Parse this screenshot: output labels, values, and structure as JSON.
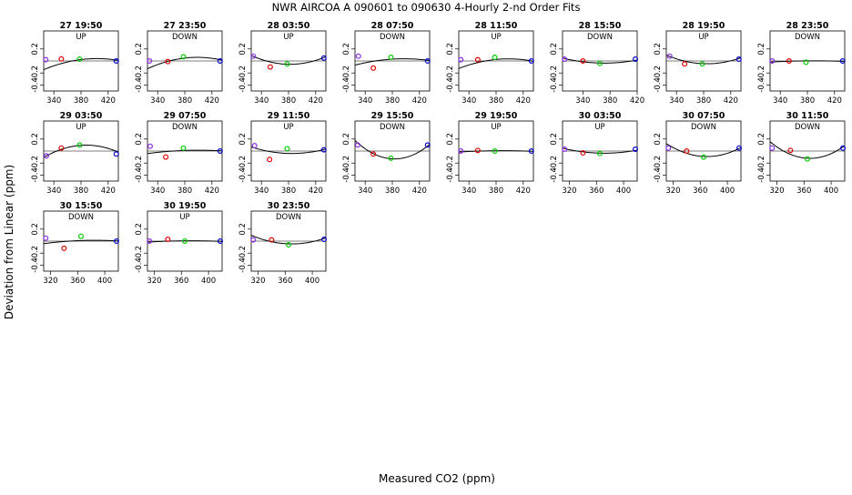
{
  "title": "NWR   AIRCOA A   090601 to 090630   4-Hourly 2-nd Order Fits",
  "xlabel": "Measured CO2 (ppm)",
  "ylabel": "Deviation from Linear (ppm)",
  "colors": {
    "marker1": "#8a2be2",
    "marker2": "#e00000",
    "marker3": "#00cc00",
    "marker4": "#0000cc",
    "curve": "#000000"
  },
  "chart_data": {
    "type": "scatter",
    "panels": [
      {
        "title": "27 19:50",
        "dir": "UP",
        "xlim": [
          325,
          435
        ],
        "xticks": [
          340,
          380,
          420
        ],
        "ylim": [
          -0.5,
          0.5
        ],
        "yticks": [
          0.2,
          -0.2,
          -0.4
        ],
        "points": [
          [
            328,
            0.02
          ],
          [
            351,
            0.035
          ],
          [
            378,
            0.03
          ],
          [
            432,
            0.0
          ]
        ],
        "curve": [
          0.023,
          0.0014,
          -3e-05
        ]
      },
      {
        "title": "27 23:50",
        "dir": "DOWN",
        "xlim": [
          325,
          435
        ],
        "xticks": [
          340,
          380,
          420
        ],
        "ylim": [
          -0.5,
          0.5
        ],
        "yticks": [
          0.2,
          -0.2,
          -0.4
        ],
        "points": [
          [
            328,
            0.0
          ],
          [
            355,
            -0.01
          ],
          [
            378,
            0.07
          ],
          [
            432,
            0.0
          ]
        ],
        "curve": [
          0.048,
          0.0013,
          -3.5e-05
        ]
      },
      {
        "title": "28 03:50",
        "dir": "UP",
        "xlim": [
          325,
          435
        ],
        "xticks": [
          340,
          380,
          420
        ],
        "ylim": [
          -0.5,
          0.5
        ],
        "yticks": [
          0.2,
          -0.2,
          -0.4
        ],
        "points": [
          [
            328,
            0.08
          ],
          [
            353,
            -0.1
          ],
          [
            378,
            -0.05
          ],
          [
            432,
            0.05
          ]
        ],
        "curve": [
          -0.055,
          -0.0002,
          4.5e-05
        ]
      },
      {
        "title": "28 07:50",
        "dir": "DOWN",
        "xlim": [
          325,
          435
        ],
        "xticks": [
          340,
          380,
          420
        ],
        "ylim": [
          -0.5,
          0.5
        ],
        "yticks": [
          0.2,
          -0.2,
          -0.4
        ],
        "points": [
          [
            330,
            0.08
          ],
          [
            352,
            -0.12
          ],
          [
            378,
            0.06
          ],
          [
            432,
            0.0
          ]
        ],
        "curve": [
          0.03,
          0.0007,
          -2e-05
        ]
      },
      {
        "title": "28 11:50",
        "dir": "UP",
        "xlim": [
          325,
          435
        ],
        "xticks": [
          340,
          380,
          420
        ],
        "ylim": [
          -0.5,
          0.5
        ],
        "yticks": [
          0.2,
          -0.2,
          -0.4
        ],
        "points": [
          [
            328,
            0.02
          ],
          [
            353,
            0.02
          ],
          [
            378,
            0.06
          ],
          [
            432,
            0.0
          ]
        ],
        "curve": [
          0.025,
          0.0011,
          -3e-05
        ]
      },
      {
        "title": "28 15:50",
        "dir": "DOWN",
        "xlim": [
          310,
          420
        ],
        "xticks": [
          340,
          380,
          420
        ],
        "ylim": [
          -0.5,
          0.5
        ],
        "yticks": [
          0.2,
          -0.2,
          -0.4
        ],
        "points": [
          [
            313,
            0.03
          ],
          [
            340,
            0.0
          ],
          [
            365,
            -0.04
          ],
          [
            418,
            0.03
          ]
        ],
        "curve": [
          -0.035,
          -0.0003,
          2.2e-05
        ]
      },
      {
        "title": "28 19:50",
        "dir": "UP",
        "xlim": [
          325,
          435
        ],
        "xticks": [
          340,
          380,
          420
        ],
        "ylim": [
          -0.5,
          0.5
        ],
        "yticks": [
          0.2,
          -0.2,
          -0.4
        ],
        "points": [
          [
            330,
            0.08
          ],
          [
            352,
            -0.05
          ],
          [
            378,
            -0.05
          ],
          [
            432,
            0.03
          ]
        ],
        "curve": [
          -0.045,
          -0.0004,
          4e-05
        ]
      },
      {
        "title": "28 23:50",
        "dir": "DOWN",
        "xlim": [
          325,
          435
        ],
        "xticks": [
          340,
          380,
          420
        ],
        "ylim": [
          -0.5,
          0.5
        ],
        "yticks": [
          0.2,
          -0.2,
          -0.4
        ],
        "points": [
          [
            328,
            0.0
          ],
          [
            353,
            0.0
          ],
          [
            378,
            -0.02
          ],
          [
            432,
            0.0
          ]
        ],
        "curve": [
          0.002,
          0.0001,
          -5e-06
        ]
      },
      {
        "title": "29 03:50",
        "dir": "UP",
        "xlim": [
          325,
          435
        ],
        "xticks": [
          340,
          380,
          420
        ],
        "ylim": [
          -0.5,
          0.5
        ],
        "yticks": [
          0.2,
          -0.2,
          -0.4
        ],
        "points": [
          [
            329,
            -0.08
          ],
          [
            351,
            0.05
          ],
          [
            378,
            0.1
          ],
          [
            432,
            -0.05
          ]
        ],
        "curve": [
          0.095,
          0.0008,
          -5.2e-05
        ]
      },
      {
        "title": "29 07:50",
        "dir": "DOWN",
        "xlim": [
          325,
          435
        ],
        "xticks": [
          340,
          380,
          420
        ],
        "ylim": [
          -0.5,
          0.5
        ],
        "yticks": [
          0.2,
          -0.2,
          -0.4
        ],
        "points": [
          [
            329,
            0.08
          ],
          [
            352,
            -0.1
          ],
          [
            378,
            0.05
          ],
          [
            432,
            0.0
          ]
        ],
        "curve": [
          0.01,
          0.0004,
          -1e-05
        ]
      },
      {
        "title": "29 11:50",
        "dir": "UP",
        "xlim": [
          325,
          435
        ],
        "xticks": [
          340,
          380,
          420
        ],
        "ylim": [
          -0.5,
          0.5
        ],
        "yticks": [
          0.2,
          -0.2,
          -0.4
        ],
        "points": [
          [
            330,
            0.09
          ],
          [
            352,
            -0.14
          ],
          [
            378,
            0.04
          ],
          [
            432,
            0.02
          ]
        ],
        "curve": [
          -0.04,
          -0.0003,
          3e-05
        ]
      },
      {
        "title": "29 15:50",
        "dir": "DOWN",
        "xlim": [
          325,
          435
        ],
        "xticks": [
          340,
          380,
          420
        ],
        "ylim": [
          -0.5,
          0.5
        ],
        "yticks": [
          0.2,
          -0.2,
          -0.4
        ],
        "points": [
          [
            329,
            0.1
          ],
          [
            352,
            -0.05
          ],
          [
            378,
            -0.12
          ],
          [
            432,
            0.1
          ]
        ],
        "curve": [
          -0.13,
          -0.0006,
          9e-05
        ]
      },
      {
        "title": "29 19:50",
        "dir": "UP",
        "xlim": [
          325,
          435
        ],
        "xticks": [
          340,
          380,
          420
        ],
        "ylim": [
          -0.5,
          0.5
        ],
        "yticks": [
          0.2,
          -0.2,
          -0.4
        ],
        "points": [
          [
            328,
            0.0
          ],
          [
            353,
            0.01
          ],
          [
            378,
            0.0
          ],
          [
            432,
            0.0
          ]
        ],
        "curve": [
          0.005,
          0.0001,
          -5e-06
        ]
      },
      {
        "title": "30 03:50",
        "dir": "UP",
        "xlim": [
          310,
          420
        ],
        "xticks": [
          320,
          360,
          400
        ],
        "ylim": [
          -0.5,
          0.5
        ],
        "yticks": [
          0.2,
          -0.2,
          -0.4
        ],
        "points": [
          [
            313,
            0.03
          ],
          [
            340,
            -0.03
          ],
          [
            365,
            -0.04
          ],
          [
            418,
            0.03
          ]
        ],
        "curve": [
          -0.035,
          -0.0003,
          2.2e-05
        ]
      },
      {
        "title": "30 07:50",
        "dir": "DOWN",
        "xlim": [
          310,
          420
        ],
        "xticks": [
          320,
          360,
          400
        ],
        "ylim": [
          -0.5,
          0.5
        ],
        "yticks": [
          0.2,
          -0.2,
          -0.4
        ],
        "points": [
          [
            313,
            0.05
          ],
          [
            340,
            0.0
          ],
          [
            365,
            -0.1
          ],
          [
            418,
            0.05
          ]
        ],
        "curve": [
          -0.09,
          -0.0006,
          6e-05
        ]
      },
      {
        "title": "30 11:50",
        "dir": "DOWN",
        "xlim": [
          310,
          420
        ],
        "xticks": [
          320,
          360,
          400
        ],
        "ylim": [
          -0.5,
          0.5
        ],
        "yticks": [
          0.2,
          -0.2,
          -0.4
        ],
        "points": [
          [
            313,
            0.05
          ],
          [
            340,
            0.01
          ],
          [
            365,
            -0.13
          ],
          [
            418,
            0.05
          ]
        ],
        "curve": [
          -0.12,
          -0.0006,
          8e-05
        ]
      },
      {
        "title": "30 15:50",
        "dir": "DOWN",
        "xlim": [
          310,
          420
        ],
        "xticks": [
          320,
          360,
          400
        ],
        "ylim": [
          -0.5,
          0.5
        ],
        "yticks": [
          0.2,
          -0.2,
          -0.4
        ],
        "points": [
          [
            313,
            0.05
          ],
          [
            340,
            -0.12
          ],
          [
            365,
            0.08
          ],
          [
            418,
            0.0
          ]
        ],
        "curve": [
          0.01,
          0.0004,
          -1e-05
        ]
      },
      {
        "title": "30 19:50",
        "dir": "UP",
        "xlim": [
          310,
          420
        ],
        "xticks": [
          320,
          360,
          400
        ],
        "ylim": [
          -0.5,
          0.5
        ],
        "yticks": [
          0.2,
          -0.2,
          -0.4
        ],
        "points": [
          [
            313,
            0.0
          ],
          [
            340,
            0.03
          ],
          [
            365,
            0.0
          ],
          [
            418,
            0.0
          ]
        ],
        "curve": [
          0.005,
          0.0001,
          -5e-06
        ]
      },
      {
        "title": "30 23:50",
        "dir": "DOWN",
        "xlim": [
          310,
          420
        ],
        "xticks": [
          320,
          360,
          400
        ],
        "ylim": [
          -0.5,
          0.5
        ],
        "yticks": [
          0.2,
          -0.2,
          -0.4
        ],
        "points": [
          [
            313,
            0.02
          ],
          [
            340,
            0.02
          ],
          [
            365,
            -0.06
          ],
          [
            418,
            0.03
          ]
        ],
        "curve": [
          -0.045,
          -0.0004,
          4e-05
        ]
      }
    ]
  }
}
